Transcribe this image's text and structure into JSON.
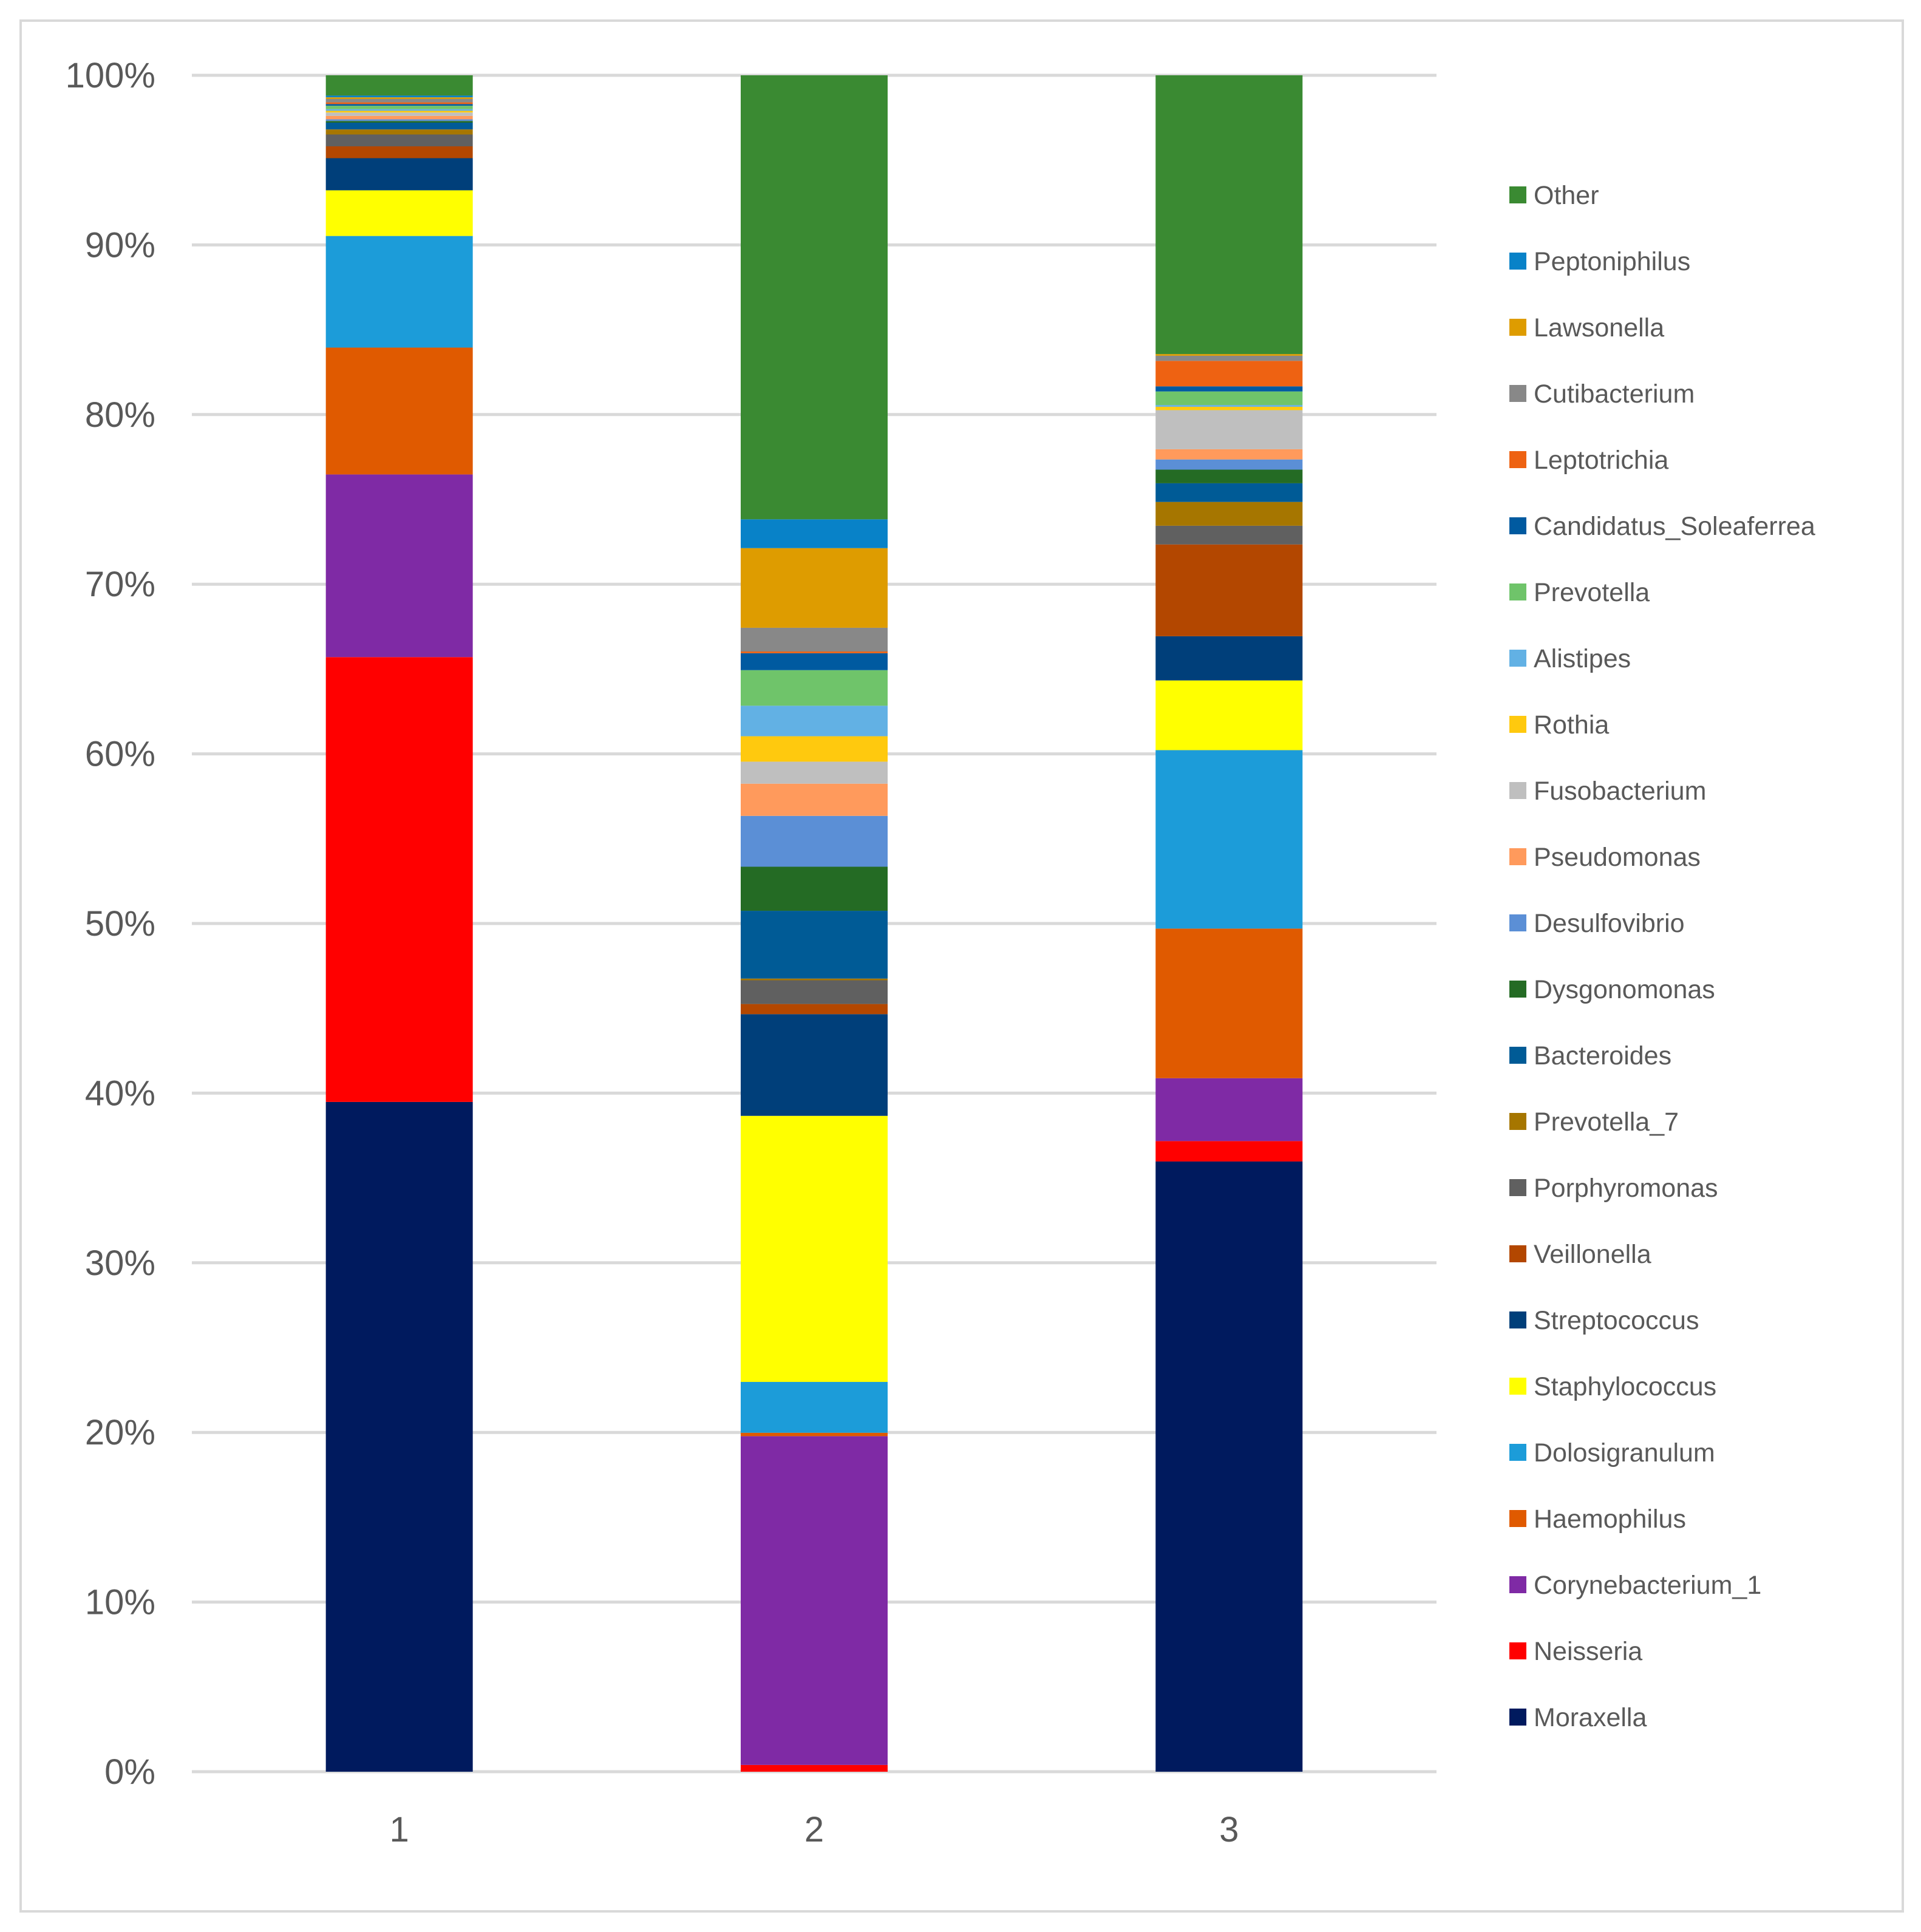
{
  "chart_data": {
    "type": "bar",
    "stacked": true,
    "percent": true,
    "title": "",
    "xlabel": "",
    "ylabel": "",
    "ylim": [
      0,
      100
    ],
    "y_ticks": [
      "0%",
      "10%",
      "20%",
      "30%",
      "40%",
      "50%",
      "60%",
      "70%",
      "80%",
      "90%",
      "100%"
    ],
    "gridlines": true,
    "legend_position": "right",
    "categories": [
      "1",
      "2",
      "3"
    ],
    "series": [
      {
        "name": "Moraxella",
        "color": "#001a5e",
        "values": [
          39.6,
          0.0,
          35.9
        ]
      },
      {
        "name": "Neisseria",
        "color": "#ff0000",
        "values": [
          26.3,
          0.4,
          1.2
        ]
      },
      {
        "name": "Corynebacterium_1",
        "color": "#7f2aa5",
        "values": [
          10.8,
          19.4,
          3.7
        ]
      },
      {
        "name": "Haemophilus",
        "color": "#e05a00",
        "values": [
          7.5,
          0.2,
          8.8
        ]
      },
      {
        "name": "Dolosigranulum",
        "color": "#1c9cd9",
        "values": [
          6.6,
          3.0,
          10.5
        ]
      },
      {
        "name": "Staphylococcus",
        "color": "#ffff00",
        "values": [
          2.7,
          15.7,
          4.1
        ]
      },
      {
        "name": "Streptococcus",
        "color": "#003f7a",
        "values": [
          1.9,
          6.0,
          2.6
        ]
      },
      {
        "name": "Veillonella",
        "color": "#b34700",
        "values": [
          0.7,
          0.6,
          5.4
        ]
      },
      {
        "name": "Porphyromonas",
        "color": "#606060",
        "values": [
          0.7,
          1.4,
          1.1
        ]
      },
      {
        "name": "Prevotella_7",
        "color": "#a67600",
        "values": [
          0.3,
          0.1,
          1.4
        ]
      },
      {
        "name": "Bacteroides",
        "color": "#005b96",
        "values": [
          0.4,
          4.0,
          1.1
        ]
      },
      {
        "name": "Dysgonomonas",
        "color": "#246b24",
        "values": [
          0.1,
          2.6,
          0.8
        ]
      },
      {
        "name": "Desulfovibrio",
        "color": "#5b8fd6",
        "values": [
          0.1,
          3.0,
          0.6
        ]
      },
      {
        "name": "Pseudomonas",
        "color": "#ff9a5c",
        "values": [
          0.2,
          1.9,
          0.6
        ]
      },
      {
        "name": "Fusobacterium",
        "color": "#bfbfbf",
        "values": [
          0.2,
          1.3,
          2.3
        ]
      },
      {
        "name": "Rothia",
        "color": "#ffc90e",
        "values": [
          0.1,
          1.5,
          0.2
        ]
      },
      {
        "name": "Alistipes",
        "color": "#62b1e4",
        "values": [
          0.1,
          1.8,
          0.1
        ]
      },
      {
        "name": "Prevotella",
        "color": "#6fc46a",
        "values": [
          0.2,
          2.1,
          0.8
        ]
      },
      {
        "name": "Candidatus_Soleaferrea",
        "color": "#005aa0",
        "values": [
          0.1,
          1.0,
          0.3
        ]
      },
      {
        "name": "Leptotrichia",
        "color": "#ee6212",
        "values": [
          0.1,
          0.1,
          1.5
        ]
      },
      {
        "name": "Cutibacterium",
        "color": "#888888",
        "values": [
          0.2,
          1.4,
          0.3
        ]
      },
      {
        "name": "Lawsonella",
        "color": "#de9c00",
        "values": [
          0.1,
          4.7,
          0.1
        ]
      },
      {
        "name": "Peptoniphilus",
        "color": "#0882c8",
        "values": [
          0.1,
          1.7,
          0.0
        ]
      },
      {
        "name": "Other",
        "color": "#3a8a32",
        "values": [
          1.2,
          26.2,
          16.4
        ]
      }
    ]
  }
}
